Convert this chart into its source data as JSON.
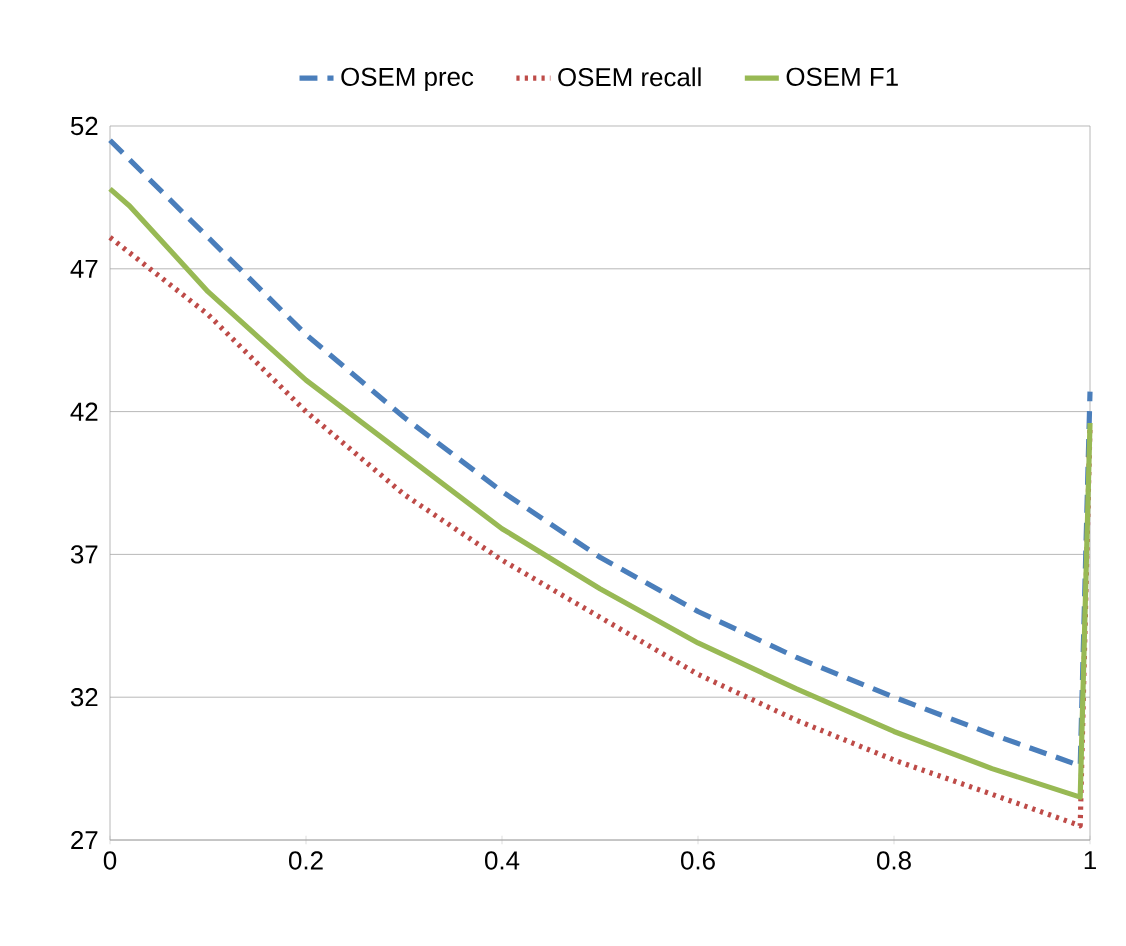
{
  "chart_data": {
    "type": "line",
    "xlim": [
      0,
      1
    ],
    "ylim": [
      27,
      52
    ],
    "xticks": [
      0,
      0.2,
      0.4,
      0.6,
      0.8,
      1
    ],
    "yticks": [
      27,
      32,
      37,
      42,
      47,
      52
    ],
    "grid": "y",
    "legend": "top",
    "series": [
      {
        "name": "OSEM prec",
        "color": "#4a7ebb",
        "line_style": "dashed",
        "x": [
          0,
          0.1,
          0.2,
          0.3,
          0.4,
          0.5,
          0.6,
          0.7,
          0.8,
          0.9,
          0.99,
          1
        ],
        "values": [
          51.5,
          48.1,
          44.7,
          41.8,
          39.2,
          36.9,
          35.0,
          33.4,
          32.0,
          30.7,
          29.6,
          42.7
        ]
      },
      {
        "name": "OSEM recall",
        "color": "#be4b48",
        "line_style": "dotted",
        "x": [
          0,
          0.1,
          0.2,
          0.3,
          0.4,
          0.5,
          0.6,
          0.7,
          0.8,
          0.9,
          0.99,
          1
        ],
        "values": [
          48.1,
          45.4,
          42.0,
          39.1,
          36.8,
          34.8,
          32.8,
          31.2,
          29.8,
          28.6,
          27.5,
          41.5
        ]
      },
      {
        "name": "OSEM F1",
        "color": "#98b954",
        "line_style": "solid",
        "x": [
          0,
          0.02,
          0.1,
          0.2,
          0.3,
          0.4,
          0.5,
          0.6,
          0.7,
          0.8,
          0.9,
          0.99,
          1
        ],
        "values": [
          49.8,
          49.2,
          46.2,
          43.1,
          40.5,
          37.9,
          35.8,
          33.9,
          32.3,
          30.8,
          29.5,
          28.5,
          41.6
        ]
      }
    ]
  }
}
